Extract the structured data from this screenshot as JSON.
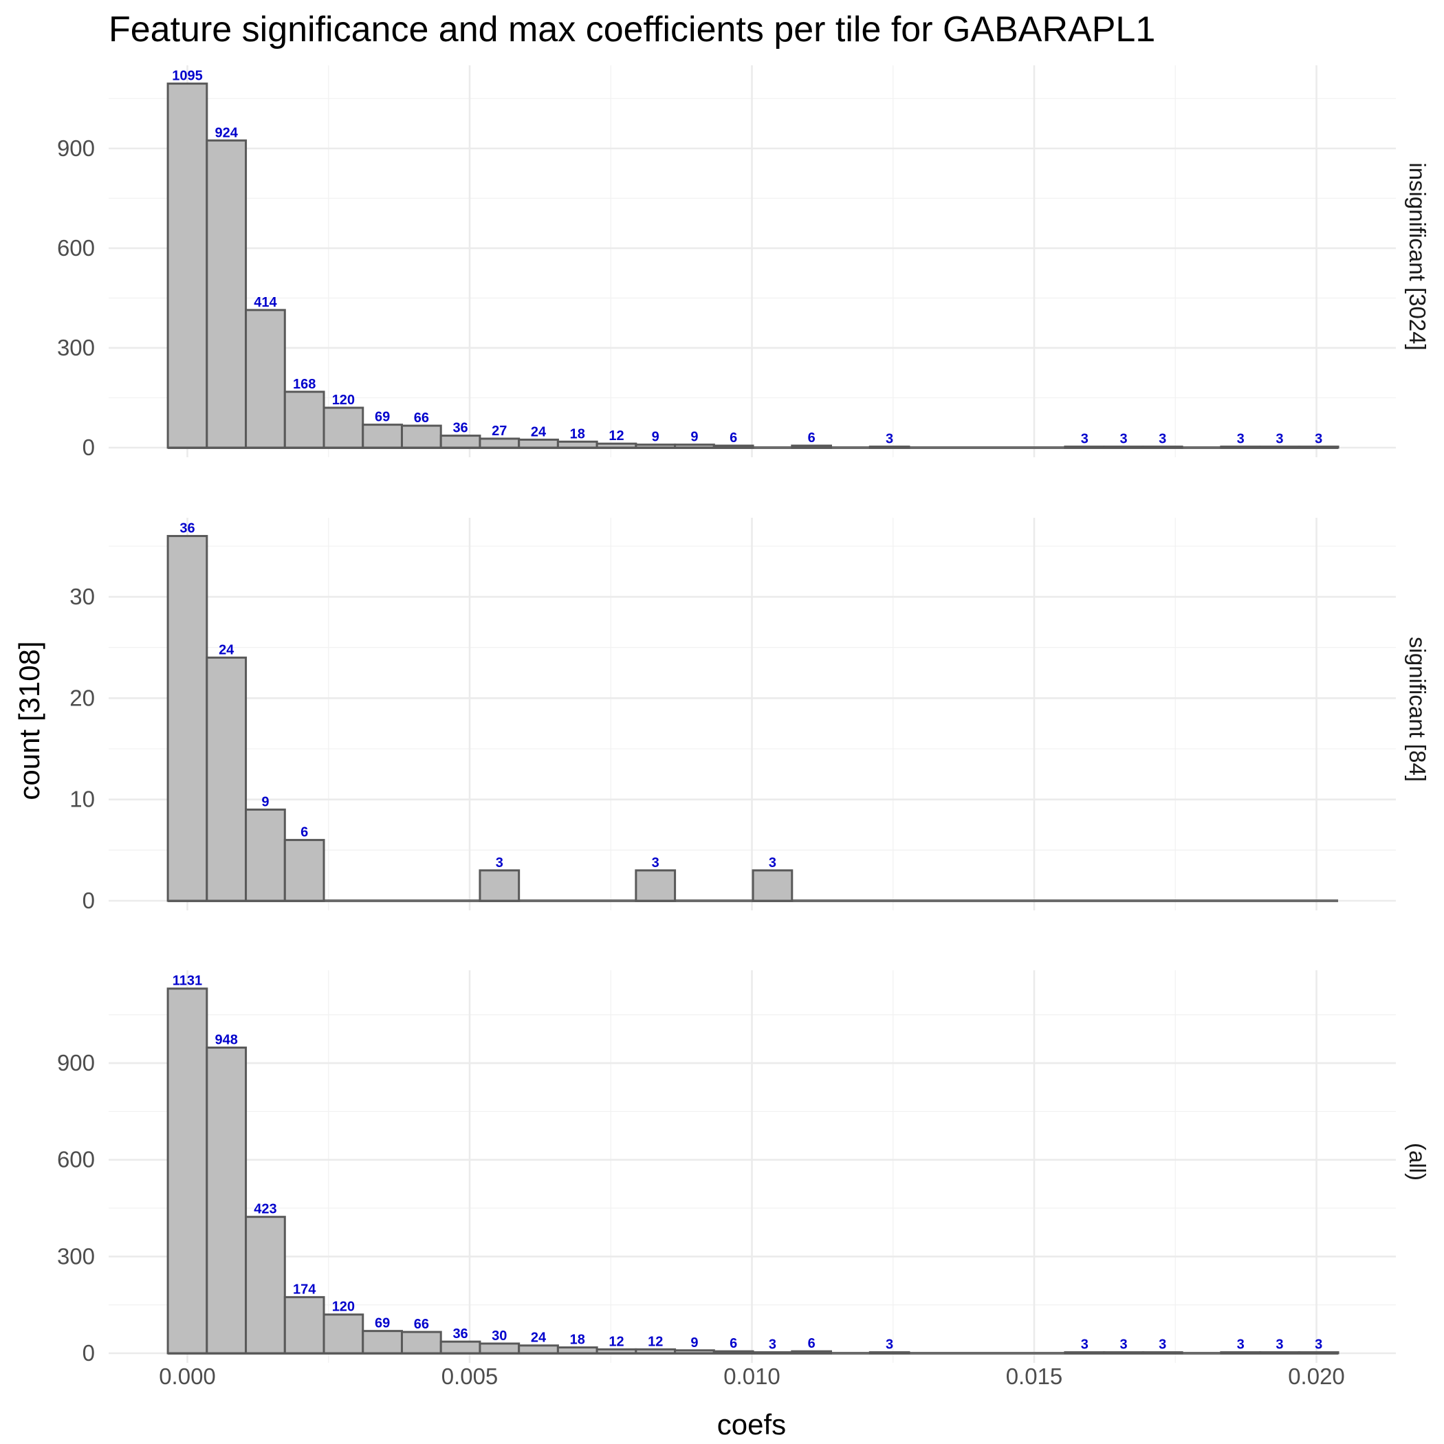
{
  "chart_data": {
    "type": "bar",
    "subtype": "histogram-faceted",
    "title": "Feature significance and max coefficients per tile for GABARAPL1",
    "xlabel": "coefs",
    "ylabel": "count [3108]",
    "x_ticks": [
      "0.000",
      "0.005",
      "0.010",
      "0.015",
      "0.020"
    ],
    "x_tick_values": [
      0,
      0.005,
      0.01,
      0.015,
      0.02
    ],
    "xlim": [
      -0.0014,
      0.0215
    ],
    "bin_width": 0.000691,
    "bin_start": -0.000346,
    "num_bins": 30,
    "facets": [
      {
        "strip_label": "insignificant [3024]",
        "ylim": [
          0,
          1150
        ],
        "y_ticks": [
          "0",
          "300",
          "600",
          "900"
        ],
        "y_tick_values": [
          0,
          300,
          600,
          900
        ],
        "bins": [
          {
            "bin": 0,
            "count": 1095
          },
          {
            "bin": 1,
            "count": 924
          },
          {
            "bin": 2,
            "count": 414
          },
          {
            "bin": 3,
            "count": 168
          },
          {
            "bin": 4,
            "count": 120
          },
          {
            "bin": 5,
            "count": 69
          },
          {
            "bin": 6,
            "count": 66
          },
          {
            "bin": 7,
            "count": 36
          },
          {
            "bin": 8,
            "count": 27
          },
          {
            "bin": 9,
            "count": 24
          },
          {
            "bin": 10,
            "count": 18
          },
          {
            "bin": 11,
            "count": 12
          },
          {
            "bin": 12,
            "count": 9
          },
          {
            "bin": 13,
            "count": 9
          },
          {
            "bin": 14,
            "count": 6
          },
          {
            "bin": 16,
            "count": 6
          },
          {
            "bin": 18,
            "count": 3
          },
          {
            "bin": 23,
            "count": 3
          },
          {
            "bin": 24,
            "count": 3
          },
          {
            "bin": 25,
            "count": 3
          },
          {
            "bin": 27,
            "count": 3
          },
          {
            "bin": 28,
            "count": 3
          },
          {
            "bin": 29,
            "count": 3
          }
        ]
      },
      {
        "strip_label": "significant [84]",
        "ylim": [
          0,
          37.8
        ],
        "y_ticks": [
          "0",
          "10",
          "20",
          "30"
        ],
        "y_tick_values": [
          0,
          10,
          20,
          30
        ],
        "bins": [
          {
            "bin": 0,
            "count": 36
          },
          {
            "bin": 1,
            "count": 24
          },
          {
            "bin": 2,
            "count": 9
          },
          {
            "bin": 3,
            "count": 6
          },
          {
            "bin": 8,
            "count": 3
          },
          {
            "bin": 12,
            "count": 3
          },
          {
            "bin": 15,
            "count": 3
          }
        ]
      },
      {
        "strip_label": "(all)",
        "ylim": [
          0,
          1188
        ],
        "y_ticks": [
          "0",
          "300",
          "600",
          "900"
        ],
        "y_tick_values": [
          0,
          300,
          600,
          900
        ],
        "bins": [
          {
            "bin": 0,
            "count": 1131
          },
          {
            "bin": 1,
            "count": 948
          },
          {
            "bin": 2,
            "count": 423
          },
          {
            "bin": 3,
            "count": 174
          },
          {
            "bin": 4,
            "count": 120
          },
          {
            "bin": 5,
            "count": 69
          },
          {
            "bin": 6,
            "count": 66
          },
          {
            "bin": 7,
            "count": 36
          },
          {
            "bin": 8,
            "count": 30
          },
          {
            "bin": 9,
            "count": 24
          },
          {
            "bin": 10,
            "count": 18
          },
          {
            "bin": 11,
            "count": 12
          },
          {
            "bin": 12,
            "count": 12
          },
          {
            "bin": 13,
            "count": 9
          },
          {
            "bin": 14,
            "count": 6
          },
          {
            "bin": 15,
            "count": 3
          },
          {
            "bin": 16,
            "count": 6
          },
          {
            "bin": 18,
            "count": 3
          },
          {
            "bin": 23,
            "count": 3
          },
          {
            "bin": 24,
            "count": 3
          },
          {
            "bin": 25,
            "count": 3
          },
          {
            "bin": 27,
            "count": 3
          },
          {
            "bin": 28,
            "count": 3
          },
          {
            "bin": 29,
            "count": 3
          }
        ]
      }
    ],
    "colors": {
      "bar_fill": "#bebebe",
      "bar_outline": "#595959",
      "label": "#0000cc",
      "grid": "#ebebeb"
    }
  }
}
